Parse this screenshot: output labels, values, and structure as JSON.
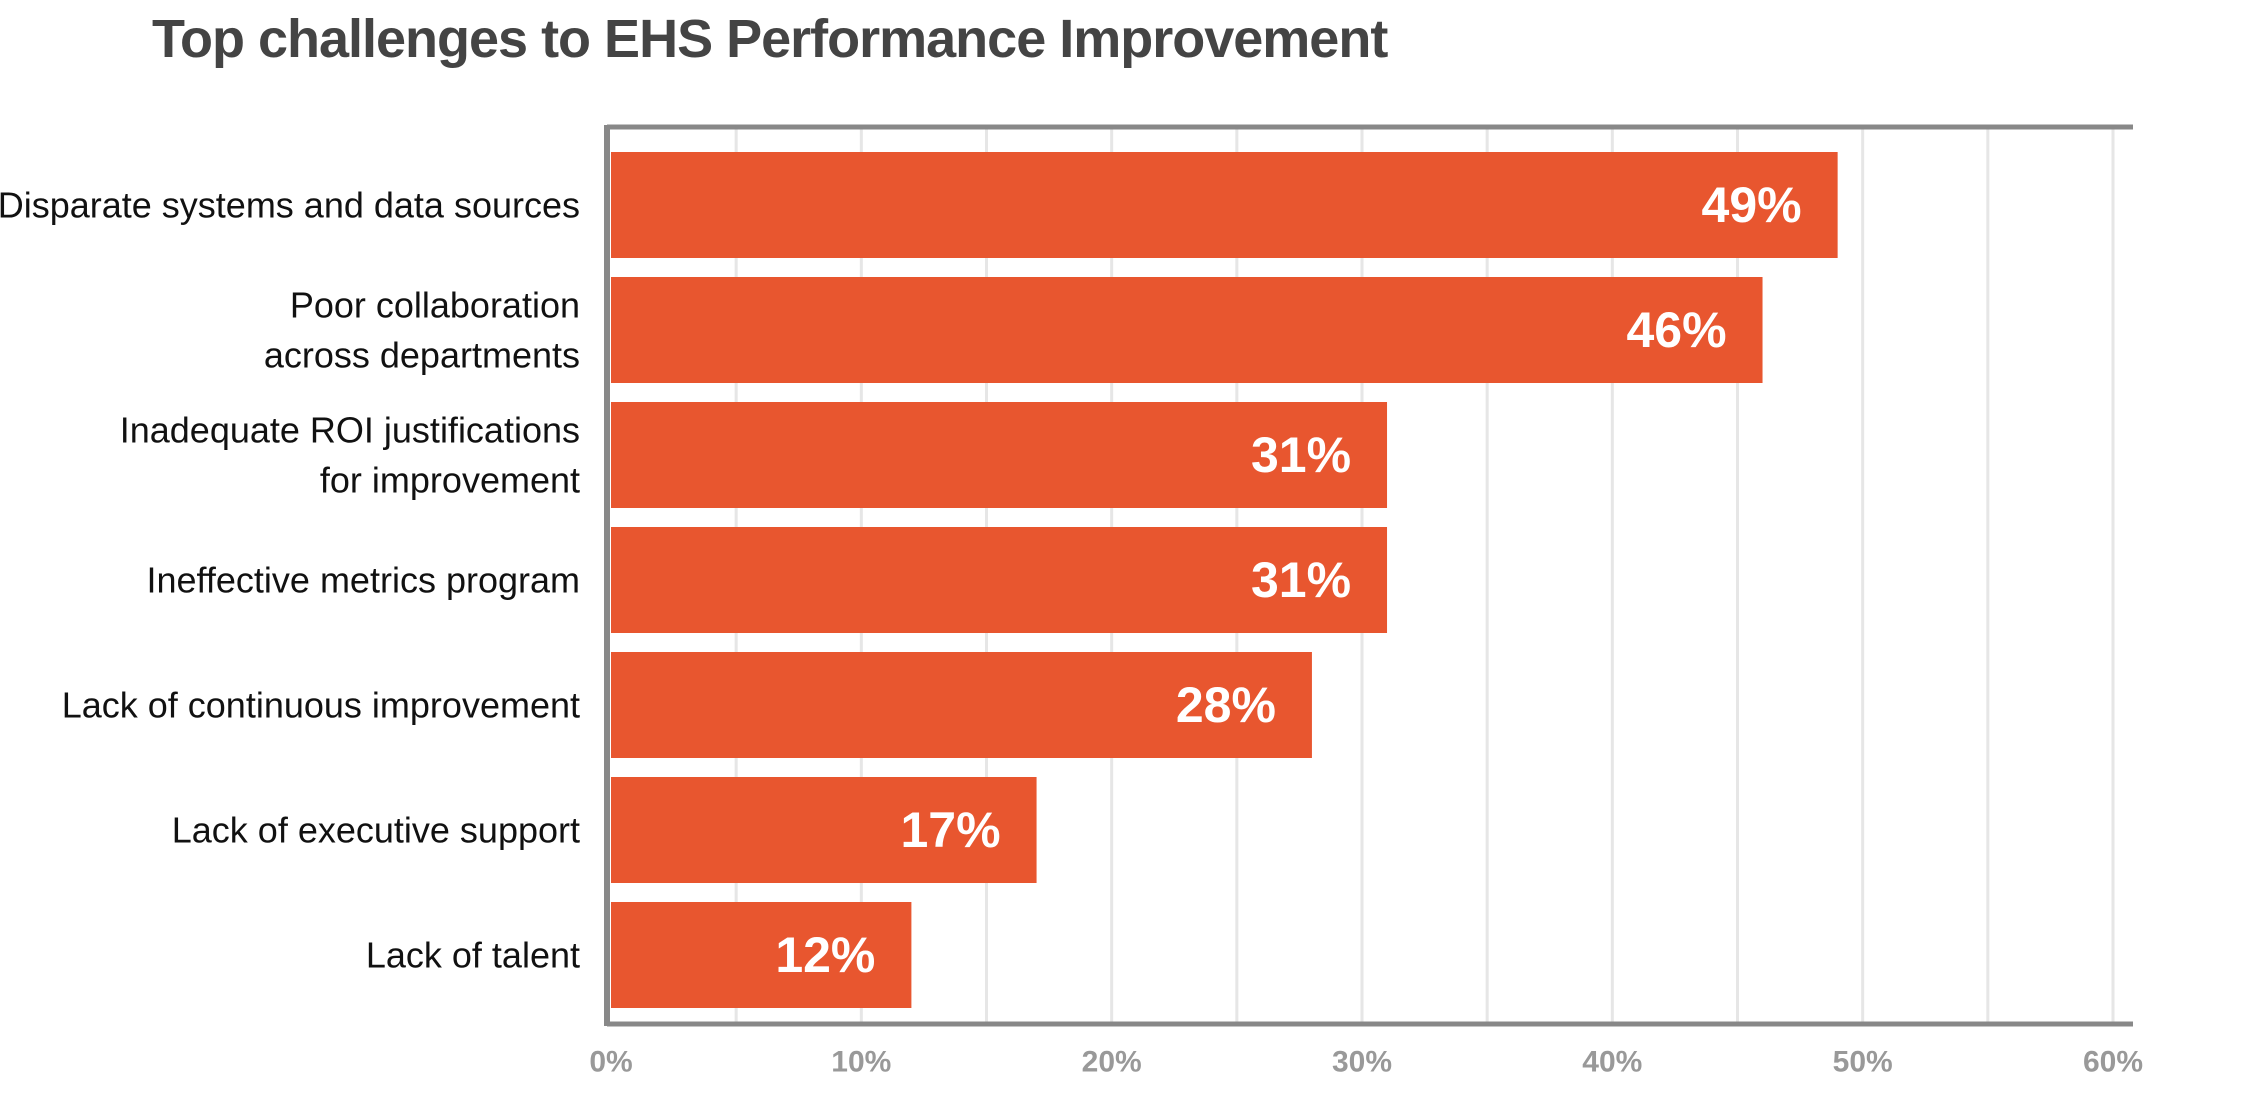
{
  "chart_data": {
    "type": "bar",
    "orientation": "horizontal",
    "title": "Top challenges to EHS Performance Improvement",
    "categories": [
      [
        "Disparate systems and data sources"
      ],
      [
        "Poor collaboration",
        "across departments"
      ],
      [
        "Inadequate ROI justifications",
        "for improvement"
      ],
      [
        "Ineffective metrics program"
      ],
      [
        "Lack of continuous improvement"
      ],
      [
        "Lack of executive support"
      ],
      [
        "Lack of talent"
      ]
    ],
    "values": [
      49,
      46,
      31,
      31,
      28,
      17,
      12
    ],
    "value_labels": [
      "49%",
      "46%",
      "31%",
      "31%",
      "28%",
      "17%",
      "12%"
    ],
    "xlim": [
      0,
      60
    ],
    "xticks": [
      0,
      10,
      20,
      30,
      40,
      50,
      60
    ],
    "xtick_labels": [
      "0%",
      "10%",
      "20%",
      "30%",
      "40%",
      "50%",
      "60%"
    ],
    "xlabel": "",
    "ylabel": "",
    "grid": true,
    "legend": "none",
    "colors": {
      "bar": "#E8562F",
      "axis": "#888888",
      "grid": "#E6E6E6",
      "title": "#444444",
      "tick_label": "#999999"
    }
  }
}
